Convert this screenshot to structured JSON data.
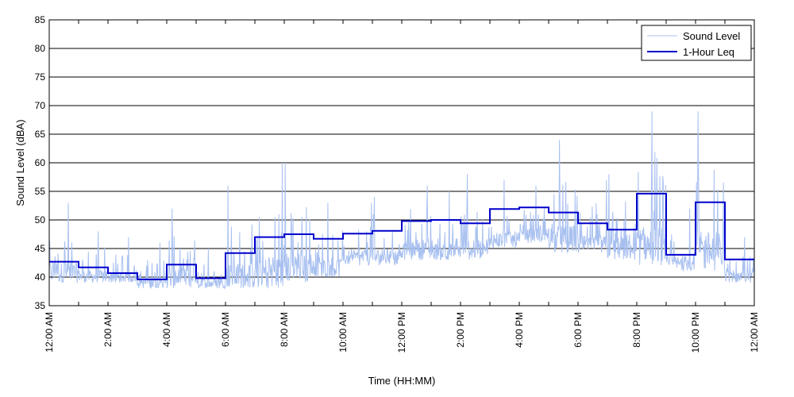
{
  "chart_data": {
    "type": "line",
    "title": "",
    "xlabel": "Time (HH:MM)",
    "ylabel": "Sound Level (dBA)",
    "ylim": [
      35,
      85
    ],
    "yticks": [
      35,
      40,
      45,
      50,
      55,
      60,
      65,
      70,
      75,
      80,
      85
    ],
    "xlim": [
      "12:00 AM",
      "12:00 AM"
    ],
    "xtick_labels": [
      "12:00 AM",
      "2:00 AM",
      "4:00 AM",
      "6:00 AM",
      "8:00 AM",
      "10:00 AM",
      "12:00 PM",
      "2:00 PM",
      "4:00 PM",
      "6:00 PM",
      "8:00 PM",
      "10:00 PM",
      "12:00 AM"
    ],
    "grid": "horizontal",
    "legend_position": "top-right",
    "series": [
      {
        "name": "Sound Level",
        "style": "thin light line (continuous fluctuating measurement)",
        "hourly_ranges": [
          {
            "hour": "12:00 AM",
            "min": 39,
            "max": 53
          },
          {
            "hour": "1:00 AM",
            "min": 39,
            "max": 48
          },
          {
            "hour": "2:00 AM",
            "min": 39,
            "max": 47
          },
          {
            "hour": "3:00 AM",
            "min": 38,
            "max": 46
          },
          {
            "hour": "4:00 AM",
            "min": 38,
            "max": 52
          },
          {
            "hour": "5:00 AM",
            "min": 38,
            "max": 45
          },
          {
            "hour": "6:00 AM",
            "min": 38,
            "max": 56
          },
          {
            "hour": "7:00 AM",
            "min": 38,
            "max": 60
          },
          {
            "hour": "8:00 AM",
            "min": 39,
            "max": 60
          },
          {
            "hour": "9:00 AM",
            "min": 40,
            "max": 53
          },
          {
            "hour": "10:00 AM",
            "min": 42,
            "max": 53
          },
          {
            "hour": "11:00 AM",
            "min": 42,
            "max": 54
          },
          {
            "hour": "12:00 PM",
            "min": 43,
            "max": 56
          },
          {
            "hour": "1:00 PM",
            "min": 43,
            "max": 55
          },
          {
            "hour": "2:00 PM",
            "min": 43,
            "max": 58
          },
          {
            "hour": "3:00 PM",
            "min": 45,
            "max": 57
          },
          {
            "hour": "4:00 PM",
            "min": 46,
            "max": 56
          },
          {
            "hour": "5:00 PM",
            "min": 44,
            "max": 64
          },
          {
            "hour": "6:00 PM",
            "min": 44,
            "max": 57
          },
          {
            "hour": "7:00 PM",
            "min": 43,
            "max": 58
          },
          {
            "hour": "8:00 PM",
            "min": 42,
            "max": 69
          },
          {
            "hour": "9:00 PM",
            "min": 41,
            "max": 52
          },
          {
            "hour": "10:00 PM",
            "min": 41,
            "max": 69
          },
          {
            "hour": "11:00 PM",
            "min": 39,
            "max": 47
          }
        ]
      },
      {
        "name": "1-Hour Leq",
        "style": "thick dark step line",
        "hours": [
          "12:00 AM",
          "1:00 AM",
          "2:00 AM",
          "3:00 AM",
          "4:00 AM",
          "5:00 AM",
          "6:00 AM",
          "7:00 AM",
          "8:00 AM",
          "9:00 AM",
          "10:00 AM",
          "11:00 AM",
          "12:00 PM",
          "1:00 PM",
          "2:00 PM",
          "3:00 PM",
          "4:00 PM",
          "5:00 PM",
          "6:00 PM",
          "7:00 PM",
          "8:00 PM",
          "9:00 PM",
          "10:00 PM",
          "11:00 PM"
        ],
        "values": [
          42.7,
          41.7,
          40.7,
          39.6,
          42.2,
          39.8,
          44.2,
          47.0,
          47.5,
          46.7,
          47.6,
          48.1,
          49.8,
          50.0,
          49.4,
          51.9,
          52.2,
          51.3,
          49.4,
          48.3,
          54.6,
          43.9,
          53.1,
          43.1
        ]
      }
    ],
    "colors": {
      "sound_level": "#a8c0f0",
      "leq": "#0000cc",
      "grid": "#000000",
      "axis": "#000000"
    }
  }
}
